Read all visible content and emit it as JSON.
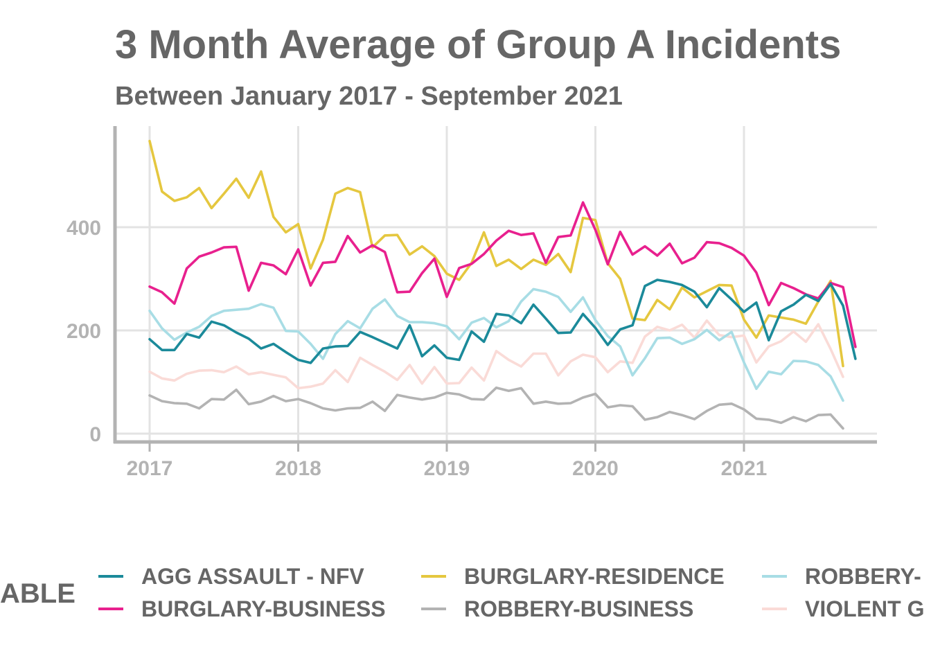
{
  "chart_data": {
    "type": "line",
    "title": "3 Month Average of Group A Incidents",
    "subtitle": "Between January 2017 - September 2021",
    "xlabel": "",
    "ylabel": "",
    "x_start": "2017-01",
    "x_ticks": [
      "2017",
      "2018",
      "2019",
      "2020",
      "2021"
    ],
    "y_ticks": [
      0,
      200,
      400
    ],
    "ylim": [
      0,
      570
    ],
    "grid": true,
    "legend": {
      "title": "ABLE",
      "position": "bottom"
    },
    "series": [
      {
        "name": "AGG ASSAULT - NFV",
        "color": "#1b8a9a",
        "values": [
          183,
          162,
          162,
          193,
          186,
          217,
          210,
          196,
          184,
          165,
          174,
          158,
          143,
          137,
          165,
          169,
          170,
          197,
          187,
          176,
          165,
          210,
          150,
          171,
          147,
          143,
          198,
          178,
          232,
          229,
          214,
          250,
          223,
          195,
          196,
          232,
          205,
          172,
          202,
          210,
          286,
          298,
          294,
          288,
          275,
          245,
          282,
          260,
          236,
          254,
          181,
          237,
          250,
          269,
          257,
          290,
          248,
          145
        ]
      },
      {
        "name": "BURGLARY-BUSINESS",
        "color": "#e8208e",
        "values": [
          285,
          274,
          252,
          320,
          343,
          351,
          361,
          362,
          277,
          331,
          326,
          309,
          357,
          287,
          331,
          333,
          383,
          351,
          365,
          352,
          274,
          275,
          311,
          339,
          265,
          321,
          329,
          348,
          374,
          393,
          385,
          388,
          331,
          381,
          384,
          448,
          395,
          328,
          391,
          347,
          363,
          345,
          368,
          330,
          341,
          371,
          369,
          360,
          345,
          312,
          249,
          292,
          282,
          270,
          262,
          292,
          284,
          168
        ]
      },
      {
        "name": "BURGLARY-RESIDENCE",
        "color": "#e5c73f",
        "values": [
          567,
          469,
          451,
          458,
          476,
          437,
          465,
          494,
          457,
          508,
          420,
          390,
          406,
          320,
          376,
          465,
          476,
          468,
          361,
          384,
          385,
          347,
          363,
          344,
          310,
          298,
          331,
          390,
          325,
          337,
          319,
          337,
          327,
          348,
          313,
          418,
          414,
          330,
          300,
          223,
          220,
          259,
          241,
          283,
          264,
          276,
          288,
          287,
          221,
          186,
          229,
          225,
          221,
          213,
          256,
          296,
          131
        ]
      },
      {
        "name": "ROBBERY-BUSINESS",
        "color": "#b3b3b3",
        "values": [
          74,
          63,
          59,
          58,
          49,
          67,
          66,
          85,
          57,
          62,
          73,
          63,
          67,
          59,
          49,
          45,
          49,
          50,
          62,
          44,
          75,
          70,
          66,
          70,
          79,
          76,
          67,
          66,
          89,
          83,
          88,
          58,
          62,
          58,
          59,
          70,
          77,
          51,
          55,
          53,
          27,
          32,
          42,
          36,
          28,
          44,
          56,
          58,
          47,
          29,
          27,
          21,
          32,
          24,
          36,
          37,
          10
        ]
      },
      {
        "name": "ROBBERY-",
        "color": "#a8dde5",
        "values": [
          238,
          204,
          182,
          196,
          207,
          228,
          238,
          240,
          242,
          251,
          244,
          199,
          198,
          174,
          145,
          193,
          218,
          204,
          242,
          260,
          228,
          216,
          216,
          214,
          208,
          183,
          215,
          224,
          206,
          218,
          256,
          280,
          275,
          265,
          236,
          264,
          220,
          189,
          169,
          113,
          146,
          185,
          186,
          174,
          183,
          201,
          181,
          197,
          138,
          87,
          120,
          115,
          141,
          140,
          133,
          111,
          64
        ]
      },
      {
        "name": "VIOLENT G",
        "color": "#fadbd7",
        "values": [
          120,
          107,
          103,
          116,
          122,
          123,
          119,
          130,
          115,
          119,
          114,
          109,
          88,
          91,
          97,
          123,
          100,
          147,
          133,
          120,
          104,
          133,
          97,
          129,
          97,
          98,
          128,
          103,
          160,
          143,
          130,
          155,
          155,
          113,
          140,
          153,
          148,
          119,
          140,
          137,
          188,
          207,
          200,
          211,
          186,
          219,
          191,
          187,
          190,
          138,
          169,
          179,
          198,
          178,
          212,
          164,
          110
        ]
      }
    ]
  }
}
